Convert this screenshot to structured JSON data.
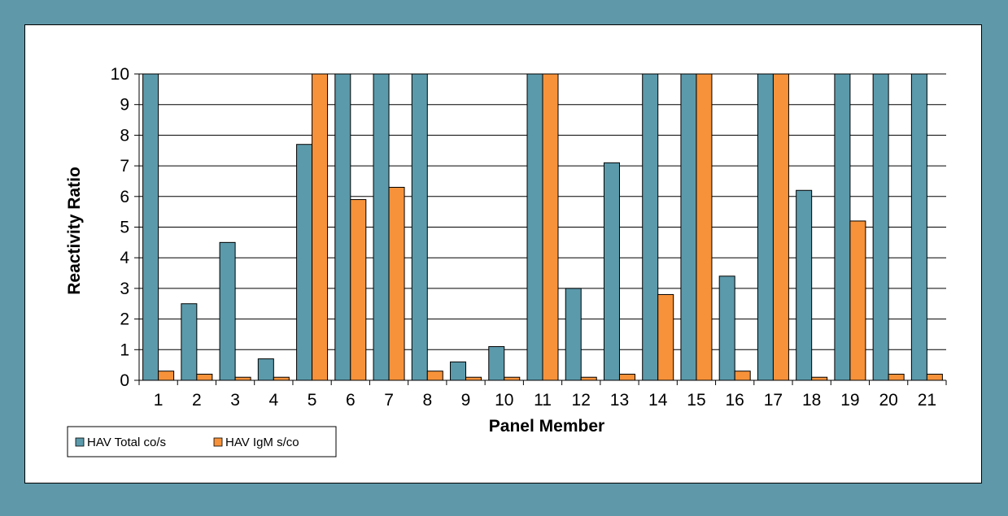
{
  "chart_data": {
    "type": "bar",
    "xlabel": "Panel Member",
    "ylabel": "Reactivity Ratio",
    "categories": [
      "1",
      "2",
      "3",
      "4",
      "5",
      "6",
      "7",
      "8",
      "9",
      "10",
      "11",
      "12",
      "13",
      "14",
      "15",
      "16",
      "17",
      "18",
      "19",
      "20",
      "21"
    ],
    "yticks": [
      "0",
      "1",
      "2",
      "3",
      "4",
      "5",
      "6",
      "7",
      "8",
      "9",
      "10"
    ],
    "ylim": [
      0,
      10
    ],
    "grid": true,
    "legend_position": "bottom-left",
    "series": [
      {
        "name": "HAV Total co/s",
        "color": "#5b9aab",
        "values": [
          10,
          2.5,
          4.5,
          0.7,
          7.7,
          10,
          10,
          10,
          0.6,
          1.1,
          10,
          3.0,
          7.1,
          10,
          10,
          3.4,
          10,
          6.2,
          10,
          10,
          10
        ]
      },
      {
        "name": "HAV IgM s/co",
        "color": "#f7923a",
        "values": [
          0.3,
          0.2,
          0.1,
          0.1,
          10,
          5.9,
          6.3,
          0.3,
          0.1,
          0.1,
          10,
          0.1,
          0.2,
          2.8,
          10,
          0.3,
          10,
          0.1,
          5.2,
          0.2,
          0.2
        ]
      }
    ]
  }
}
